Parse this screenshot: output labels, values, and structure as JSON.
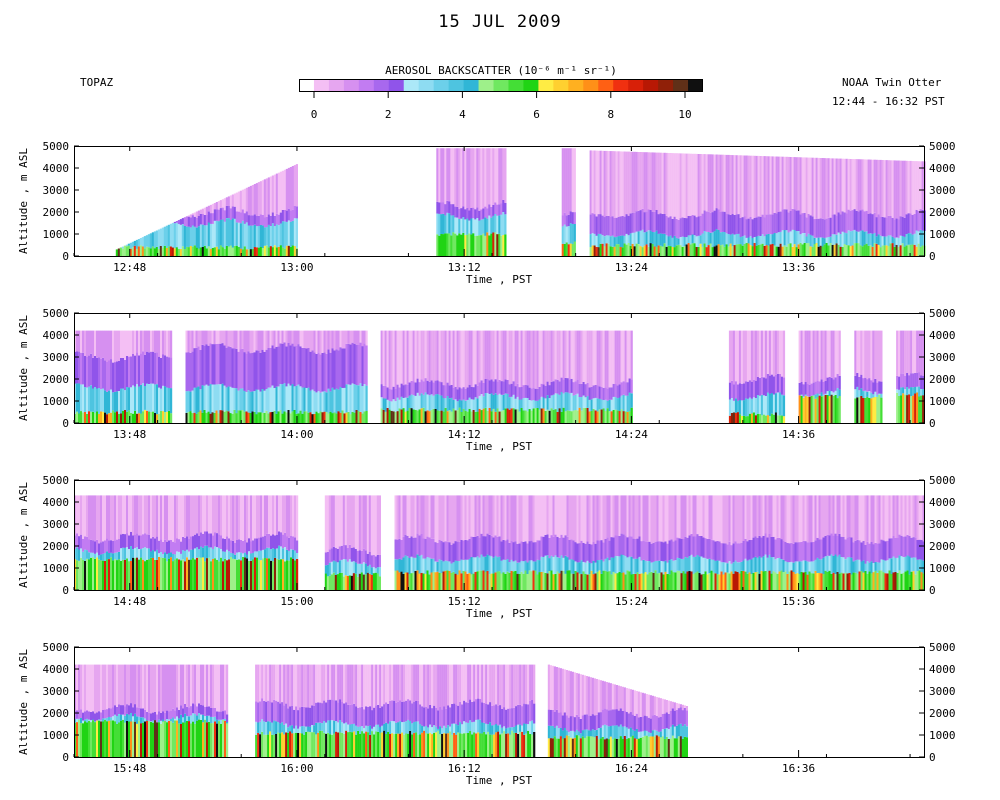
{
  "title": "15 JUL 2009",
  "instrument": "TOPAZ",
  "platform": "NOAA Twin Otter",
  "time_range": "12:44 - 16:32 PST",
  "colorbar": {
    "label": "AEROSOL BACKSCATTER (10⁻⁶ m⁻¹ sr⁻¹)",
    "ticks": [
      "0",
      "2",
      "4",
      "6",
      "8",
      "10"
    ],
    "colors": [
      "#ffffff",
      "#f4bff4",
      "#e6a6f0",
      "#d690f0",
      "#c27cf2",
      "#a868ee",
      "#9054ea",
      "#ace8f8",
      "#8edcf2",
      "#6cd0ea",
      "#4ec4e0",
      "#30b6d6",
      "#9ef08a",
      "#70e860",
      "#44de36",
      "#20d414",
      "#ffec44",
      "#ffd030",
      "#ffb020",
      "#ff9018",
      "#ff6014",
      "#f03010",
      "#d82008",
      "#b81804",
      "#902008",
      "#603018",
      "#101010"
    ]
  },
  "chart_data": {
    "type": "heatmap",
    "ylabel": "Altitude , m ASL",
    "xlabel": "Time , PST",
    "ylim": [
      0,
      5000
    ],
    "yticks": [
      "0",
      "1000",
      "2000",
      "3000",
      "4000",
      "5000"
    ],
    "panels": [
      {
        "x_range": [
          "12:44",
          "13:45"
        ],
        "xticks": [
          "12:48",
          "13:00",
          "13:12",
          "13:24",
          "13:36"
        ],
        "segments": [
          {
            "start": "12:47",
            "end": "13:00",
            "top_start": 300,
            "top_end": 4200,
            "layer_top": 2000,
            "pbl_top": 1500,
            "dense_top": 400
          },
          {
            "start": "13:10",
            "end": "13:15",
            "top_start": 4900,
            "top_end": 4900,
            "layer_top": 2300,
            "pbl_top": 1800,
            "dense_top": 1000
          },
          {
            "start": "13:19",
            "end": "13:20",
            "top_start": 4900,
            "top_end": 4900,
            "layer_top": 1800,
            "pbl_top": 1300,
            "dense_top": 600
          },
          {
            "start": "13:21",
            "end": "13:45",
            "top_start": 4800,
            "top_end": 4300,
            "layer_top": 1900,
            "pbl_top": 1000,
            "dense_top": 500
          }
        ]
      },
      {
        "x_range": [
          "13:44",
          "14:45"
        ],
        "xticks": [
          "13:48",
          "14:00",
          "14:12",
          "14:24",
          "14:36"
        ],
        "segments": [
          {
            "start": "13:44",
            "end": "13:51",
            "top_start": 4200,
            "top_end": 4200,
            "layer_top": 3000,
            "pbl_top": 1600,
            "dense_top": 500
          },
          {
            "start": "13:52",
            "end": "14:05",
            "top_start": 4200,
            "top_end": 4200,
            "layer_top": 3400,
            "pbl_top": 1600,
            "dense_top": 500
          },
          {
            "start": "14:06",
            "end": "14:24",
            "top_start": 4200,
            "top_end": 4200,
            "layer_top": 1800,
            "pbl_top": 1200,
            "dense_top": 600
          },
          {
            "start": "14:31",
            "end": "14:35",
            "top_start": 4200,
            "top_end": 4200,
            "layer_top": 2000,
            "pbl_top": 1200,
            "dense_top": 400
          },
          {
            "start": "14:36",
            "end": "14:39",
            "top_start": 4200,
            "top_end": 4200,
            "layer_top": 2000,
            "pbl_top": 1400,
            "dense_top": 1200
          },
          {
            "start": "14:40",
            "end": "14:42",
            "top_start": 4200,
            "top_end": 4200,
            "layer_top": 2100,
            "pbl_top": 1500,
            "dense_top": 1200
          },
          {
            "start": "14:43",
            "end": "14:45",
            "top_start": 4200,
            "top_end": 4200,
            "layer_top": 2100,
            "pbl_top": 1500,
            "dense_top": 1300
          }
        ]
      },
      {
        "x_range": [
          "14:44",
          "15:45"
        ],
        "xticks": [
          "14:48",
          "15:00",
          "15:12",
          "15:24",
          "15:36"
        ],
        "segments": [
          {
            "start": "14:44",
            "end": "15:00",
            "top_start": 4300,
            "top_end": 4300,
            "layer_top": 2400,
            "pbl_top": 1800,
            "dense_top": 1400
          },
          {
            "start": "15:02",
            "end": "15:06",
            "top_start": 4300,
            "top_end": 4300,
            "layer_top": 1800,
            "pbl_top": 1200,
            "dense_top": 700
          },
          {
            "start": "15:07",
            "end": "15:45",
            "top_start": 4300,
            "top_end": 4300,
            "layer_top": 2300,
            "pbl_top": 1400,
            "dense_top": 800
          }
        ]
      },
      {
        "x_range": [
          "15:44",
          "16:45"
        ],
        "xticks": [
          "15:48",
          "16:00",
          "16:12",
          "16:24",
          "16:36"
        ],
        "segments": [
          {
            "start": "15:44",
            "end": "15:55",
            "top_start": 4200,
            "top_end": 4200,
            "layer_top": 2200,
            "pbl_top": 1800,
            "dense_top": 1600
          },
          {
            "start": "15:57",
            "end": "16:17",
            "top_start": 4200,
            "top_end": 4200,
            "layer_top": 2400,
            "pbl_top": 1500,
            "dense_top": 1100
          },
          {
            "start": "16:18",
            "end": "16:28",
            "top_start": 4200,
            "top_end": 2300,
            "layer_top": 2000,
            "pbl_top": 1300,
            "dense_top": 900
          }
        ]
      }
    ]
  }
}
